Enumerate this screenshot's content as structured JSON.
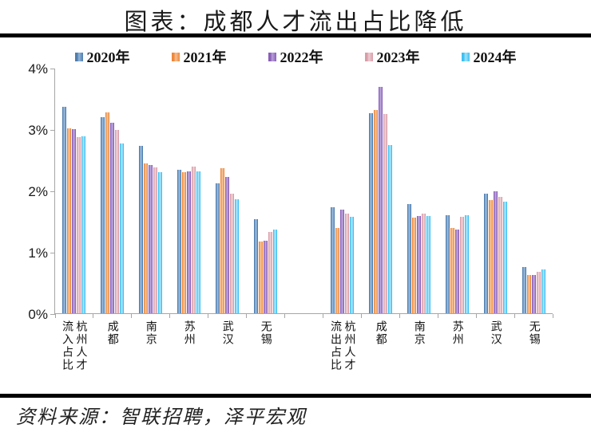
{
  "title": "图表：成都人才流出占比降低",
  "source": "资料来源：智联招聘，泽平宏观",
  "chart_data": {
    "type": "bar",
    "title": "图表：成都人才流出占比降低",
    "xlabel": "",
    "ylabel": "",
    "ylim": [
      0,
      4
    ],
    "yticks": [
      "0%",
      "1%",
      "2%",
      "3%",
      "4%"
    ],
    "grid": false,
    "legend_position": "top",
    "axis_color": "#a6a6a6",
    "gap_after_index": 5,
    "categories": [
      "流入占比\n杭州人才",
      "成都",
      "南京",
      "苏州",
      "武汉",
      "无锡",
      "流出占比\n杭州人才",
      "成都",
      "南京",
      "苏州",
      "武汉",
      "无锡"
    ],
    "series": [
      {
        "name": "2020年",
        "color": "#4f7dad",
        "light": "#93b5d9",
        "values": [
          3.38,
          3.21,
          2.73,
          2.34,
          2.13,
          1.54,
          1.73,
          3.27,
          1.78,
          1.6,
          1.96,
          0.76
        ]
      },
      {
        "name": "2021年",
        "color": "#ed873b",
        "light": "#f6bf92",
        "values": [
          3.02,
          3.28,
          2.45,
          2.3,
          2.37,
          1.17,
          1.4,
          3.32,
          1.57,
          1.4,
          1.85,
          0.63
        ]
      },
      {
        "name": "2022年",
        "color": "#8a5fb8",
        "light": "#b89fd8",
        "values": [
          3.01,
          3.12,
          2.42,
          2.32,
          2.23,
          1.19,
          1.7,
          3.7,
          1.59,
          1.37,
          1.99,
          0.63
        ]
      },
      {
        "name": "2023年",
        "color": "#d99ca7",
        "light": "#eccdd3",
        "values": [
          2.88,
          3.0,
          2.38,
          2.4,
          1.95,
          1.33,
          1.63,
          3.26,
          1.63,
          1.58,
          1.9,
          0.68
        ]
      },
      {
        "name": "2024年",
        "color": "#3fc0f1",
        "light": "#a3e2fa",
        "values": [
          2.89,
          2.77,
          2.3,
          2.32,
          1.86,
          1.37,
          1.58,
          2.75,
          1.59,
          1.6,
          1.82,
          0.72
        ]
      }
    ]
  }
}
